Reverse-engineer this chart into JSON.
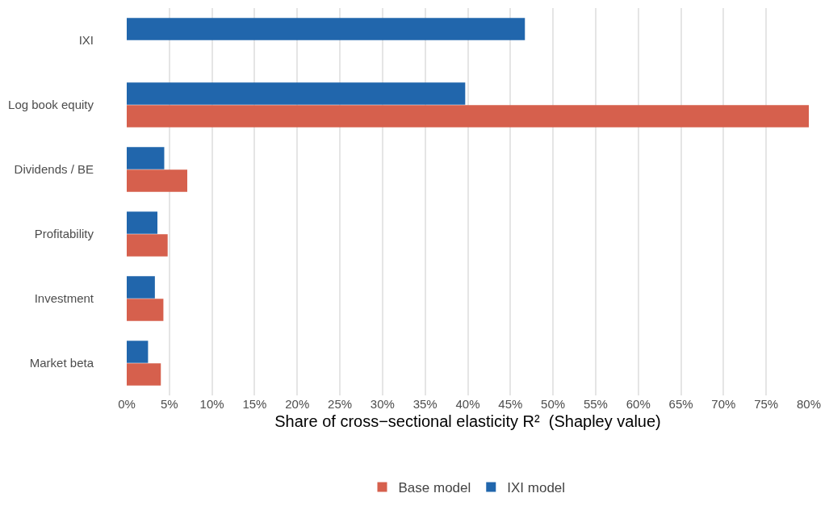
{
  "chart_data": {
    "type": "bar",
    "orientation": "horizontal",
    "xlabel": "Share of cross−sectional elasticity R²  (Shapley value)",
    "categories": [
      "IXI",
      "Log book equity",
      "Dividends / BE",
      "Profitability",
      "Investment",
      "Market beta"
    ],
    "series": [
      {
        "name": "Base model",
        "color": "#d6604d",
        "values": [
          0,
          80,
          7.1,
          4.8,
          4.3,
          4.0
        ]
      },
      {
        "name": "IXI model",
        "color": "#2166ac",
        "values": [
          46.7,
          39.7,
          4.4,
          3.6,
          3.3,
          2.5
        ]
      }
    ],
    "xlim": [
      0,
      80
    ],
    "xticks": [
      {
        "value": 0,
        "label": "0%"
      },
      {
        "value": 5,
        "label": "5%"
      },
      {
        "value": 10,
        "label": "10%"
      },
      {
        "value": 15,
        "label": "15%"
      },
      {
        "value": 20,
        "label": "20%"
      },
      {
        "value": 25,
        "label": "25%"
      },
      {
        "value": 30,
        "label": "30%"
      },
      {
        "value": 35,
        "label": "35%"
      },
      {
        "value": 40,
        "label": "40%"
      },
      {
        "value": 45,
        "label": "45%"
      },
      {
        "value": 50,
        "label": "50%"
      },
      {
        "value": 55,
        "label": "55%"
      },
      {
        "value": 60,
        "label": "60%"
      },
      {
        "value": 65,
        "label": "65%"
      },
      {
        "value": 70,
        "label": "70%"
      },
      {
        "value": 75,
        "label": "75%"
      },
      {
        "value": 80,
        "label": "80%"
      }
    ],
    "grid": "x",
    "legend": "bottom"
  }
}
